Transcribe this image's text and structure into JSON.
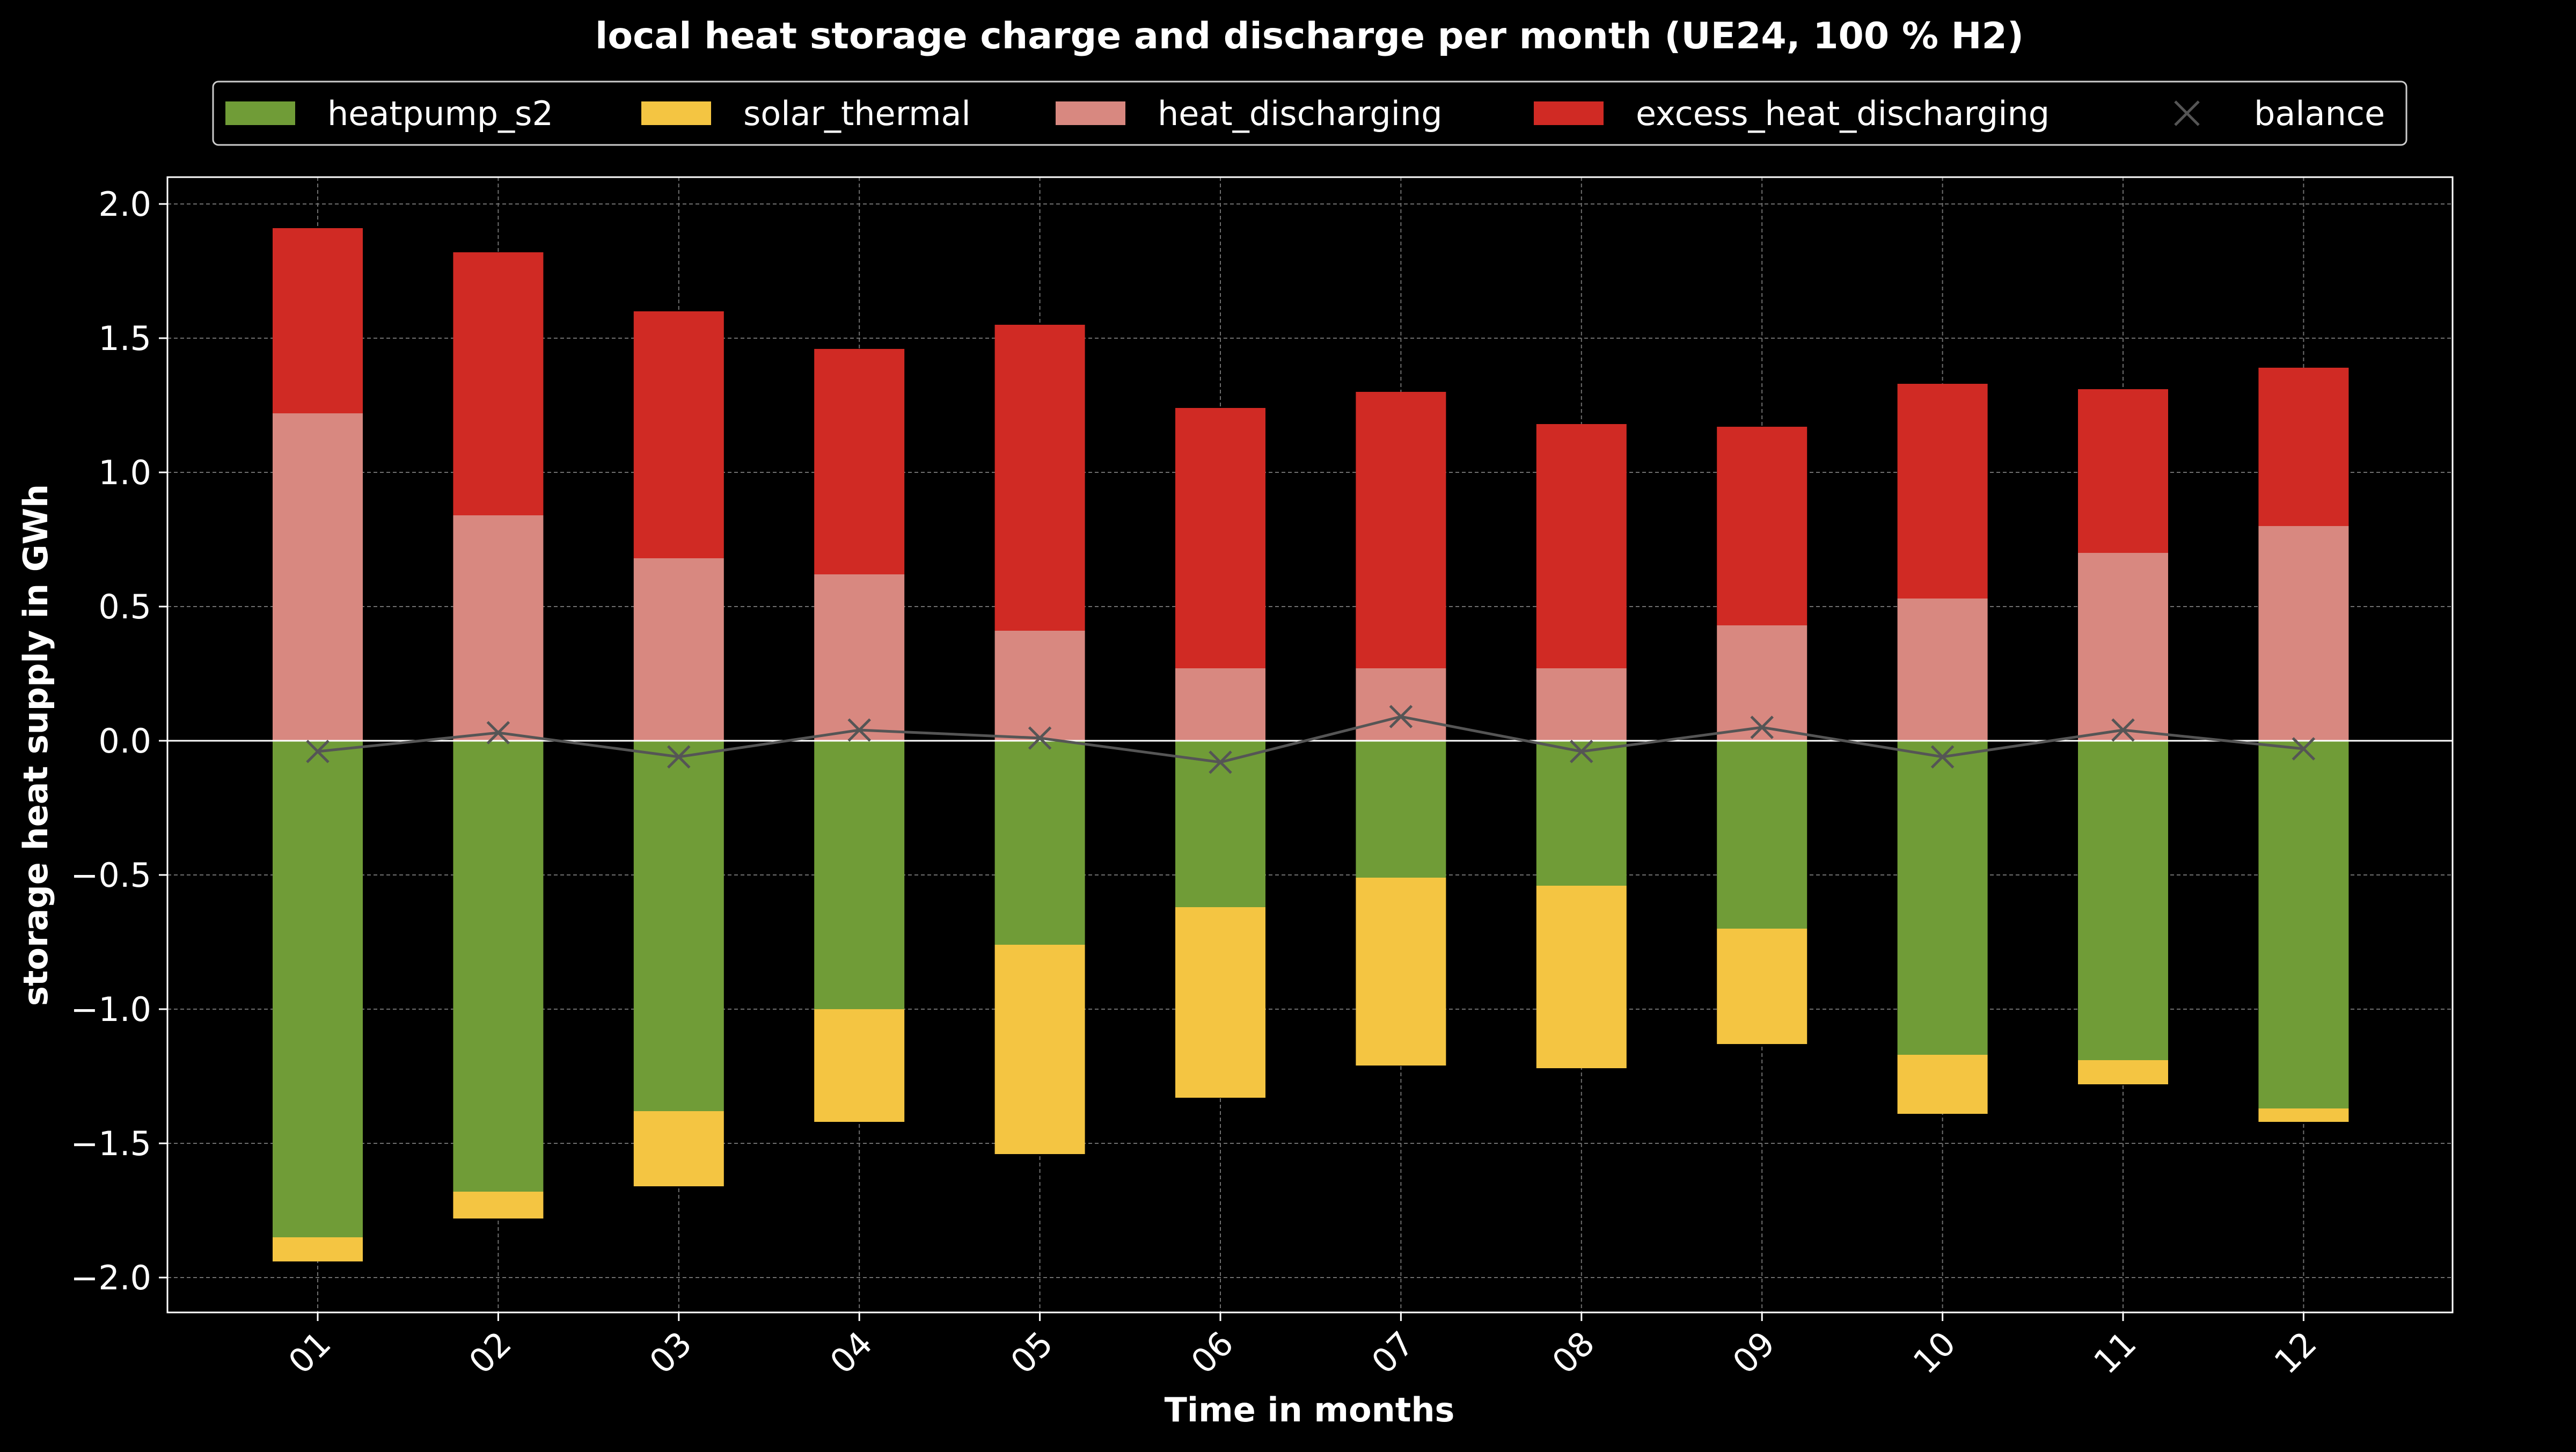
{
  "colors": {
    "background": "#000000",
    "grid": "#6e6e6e",
    "heatpump_s2": "#709c37",
    "solar_thermal": "#f4c542",
    "heat_discharging": "#d88880",
    "excess_heat_discharging": "#d02a24",
    "balance": "#555555",
    "text": "#ffffff"
  },
  "chart_data": {
    "type": "bar",
    "stacked": true,
    "title": "local heat storage charge and discharge per month (UE24, 100 % H2)",
    "xlabel": "Time in months",
    "ylabel": "storage heat supply in GWh",
    "ylim": [
      -2.13,
      2.1
    ],
    "yticks": [
      -2.0,
      -1.5,
      -1.0,
      -0.5,
      0.0,
      0.5,
      1.0,
      1.5,
      2.0
    ],
    "ytick_labels": [
      "−2.0",
      "−1.5",
      "−1.0",
      "−0.5",
      "0.0",
      "0.5",
      "1.0",
      "1.5",
      "2.0"
    ],
    "grid": true,
    "legend_position": "top-center",
    "categories": [
      "01",
      "02",
      "03",
      "04",
      "05",
      "06",
      "07",
      "08",
      "09",
      "10",
      "11",
      "12"
    ],
    "series": [
      {
        "name": "heatpump_s2",
        "color_key": "heatpump_s2",
        "values": [
          -1.85,
          -1.68,
          -1.38,
          -1.0,
          -0.76,
          -0.62,
          -0.51,
          -0.54,
          -0.7,
          -1.17,
          -1.19,
          -1.37
        ]
      },
      {
        "name": "solar_thermal",
        "color_key": "solar_thermal",
        "values": [
          -0.09,
          -0.1,
          -0.28,
          -0.42,
          -0.78,
          -0.71,
          -0.7,
          -0.68,
          -0.43,
          -0.22,
          -0.09,
          -0.05
        ]
      },
      {
        "name": "heat_discharging",
        "color_key": "heat_discharging",
        "values": [
          1.22,
          0.84,
          0.68,
          0.62,
          0.41,
          0.27,
          0.27,
          0.27,
          0.43,
          0.53,
          0.7,
          0.8
        ]
      },
      {
        "name": "excess_heat_discharging",
        "color_key": "excess_heat_discharging",
        "values": [
          0.69,
          0.98,
          0.92,
          0.84,
          1.14,
          0.97,
          1.03,
          0.91,
          0.74,
          0.8,
          0.61,
          0.59
        ]
      }
    ],
    "balance": {
      "name": "balance",
      "values": [
        -0.04,
        0.03,
        -0.06,
        0.04,
        0.01,
        -0.08,
        0.09,
        -0.04,
        0.05,
        -0.06,
        0.04,
        -0.03
      ]
    }
  }
}
